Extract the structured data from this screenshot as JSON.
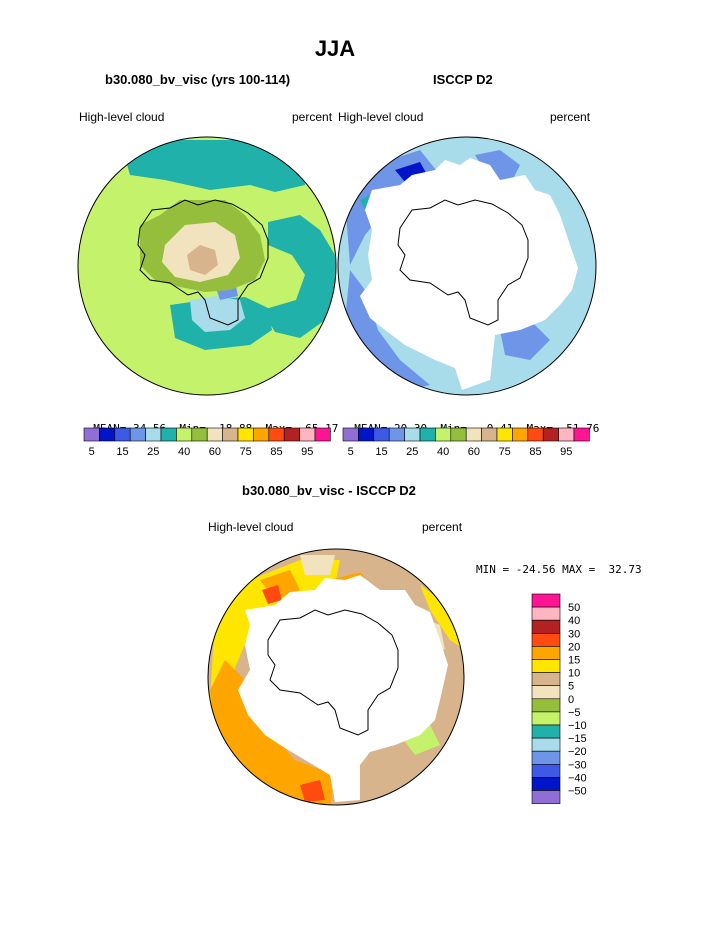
{
  "page": {
    "title": "JJA"
  },
  "colors": {
    "c5": "#8f6fd6",
    "c10": "#0014c8",
    "c15": "#3c5ae6",
    "c20": "#6f95e8",
    "c25": "#a9dcea",
    "c30": "#20b2aa",
    "c35": "#c4f26b",
    "c40": "#94be3c",
    "c50": "#f1e3bd",
    "c60": "#d8b48c",
    "c70": "#ffe600",
    "c75": "#ffa500",
    "c80": "#ff4a10",
    "c85": "#b22222",
    "c90": "#ffb6c1",
    "c95": "#ff1493"
  },
  "panels": [
    {
      "header": "b30.080_bv_visc (yrs 100-114)",
      "left_label": "High-level cloud",
      "right_label": "percent",
      "stats": {
        "mean_label": "MEAN=",
        "mean": "34.56",
        "min_label": "Min=",
        "min": "18.88",
        "max_label": "Max=",
        "max": "65.17"
      }
    },
    {
      "header": "ISCCP D2",
      "left_label": "High-level cloud",
      "right_label": "percent",
      "stats": {
        "mean_label": "MEAN=",
        "mean": "20.30",
        "min_label": "Min=",
        "min": "0.41",
        "max_label": "Max=",
        "max": "51.76"
      }
    },
    {
      "header": "b30.080_bv_visc - ISCCP D2",
      "left_label": "High-level cloud",
      "right_label": "percent",
      "stats_line": "MIN = -24.56 MAX =  32.73"
    }
  ],
  "horizontal_colorbar": {
    "colors": [
      "#8f6fd6",
      "#0014c8",
      "#3c5ae6",
      "#6f95e8",
      "#a9dcea",
      "#20b2aa",
      "#c4f26b",
      "#94be3c",
      "#f1e3bd",
      "#d8b48c",
      "#ffe600",
      "#ffa500",
      "#ff4a10",
      "#b22222",
      "#ffb6c1",
      "#ff1493"
    ],
    "tick_labels": [
      "5",
      "15",
      "25",
      "40",
      "60",
      "75",
      "85",
      "95"
    ]
  },
  "vertical_colorbar": {
    "colors_top_to_bottom": [
      "#ff1493",
      "#ffb6c1",
      "#b22222",
      "#ff4a10",
      "#ffa500",
      "#ffe600",
      "#d8b48c",
      "#f1e3bd",
      "#94be3c",
      "#c4f26b",
      "#20b2aa",
      "#a9dcea",
      "#6f95e8",
      "#3c5ae6",
      "#0014c8",
      "#8f6fd6"
    ],
    "tick_labels": [
      "50",
      "40",
      "30",
      "20",
      "15",
      "10",
      "5",
      "0",
      "−5",
      "−10",
      "−15",
      "−20",
      "−30",
      "−40",
      "−50"
    ]
  }
}
